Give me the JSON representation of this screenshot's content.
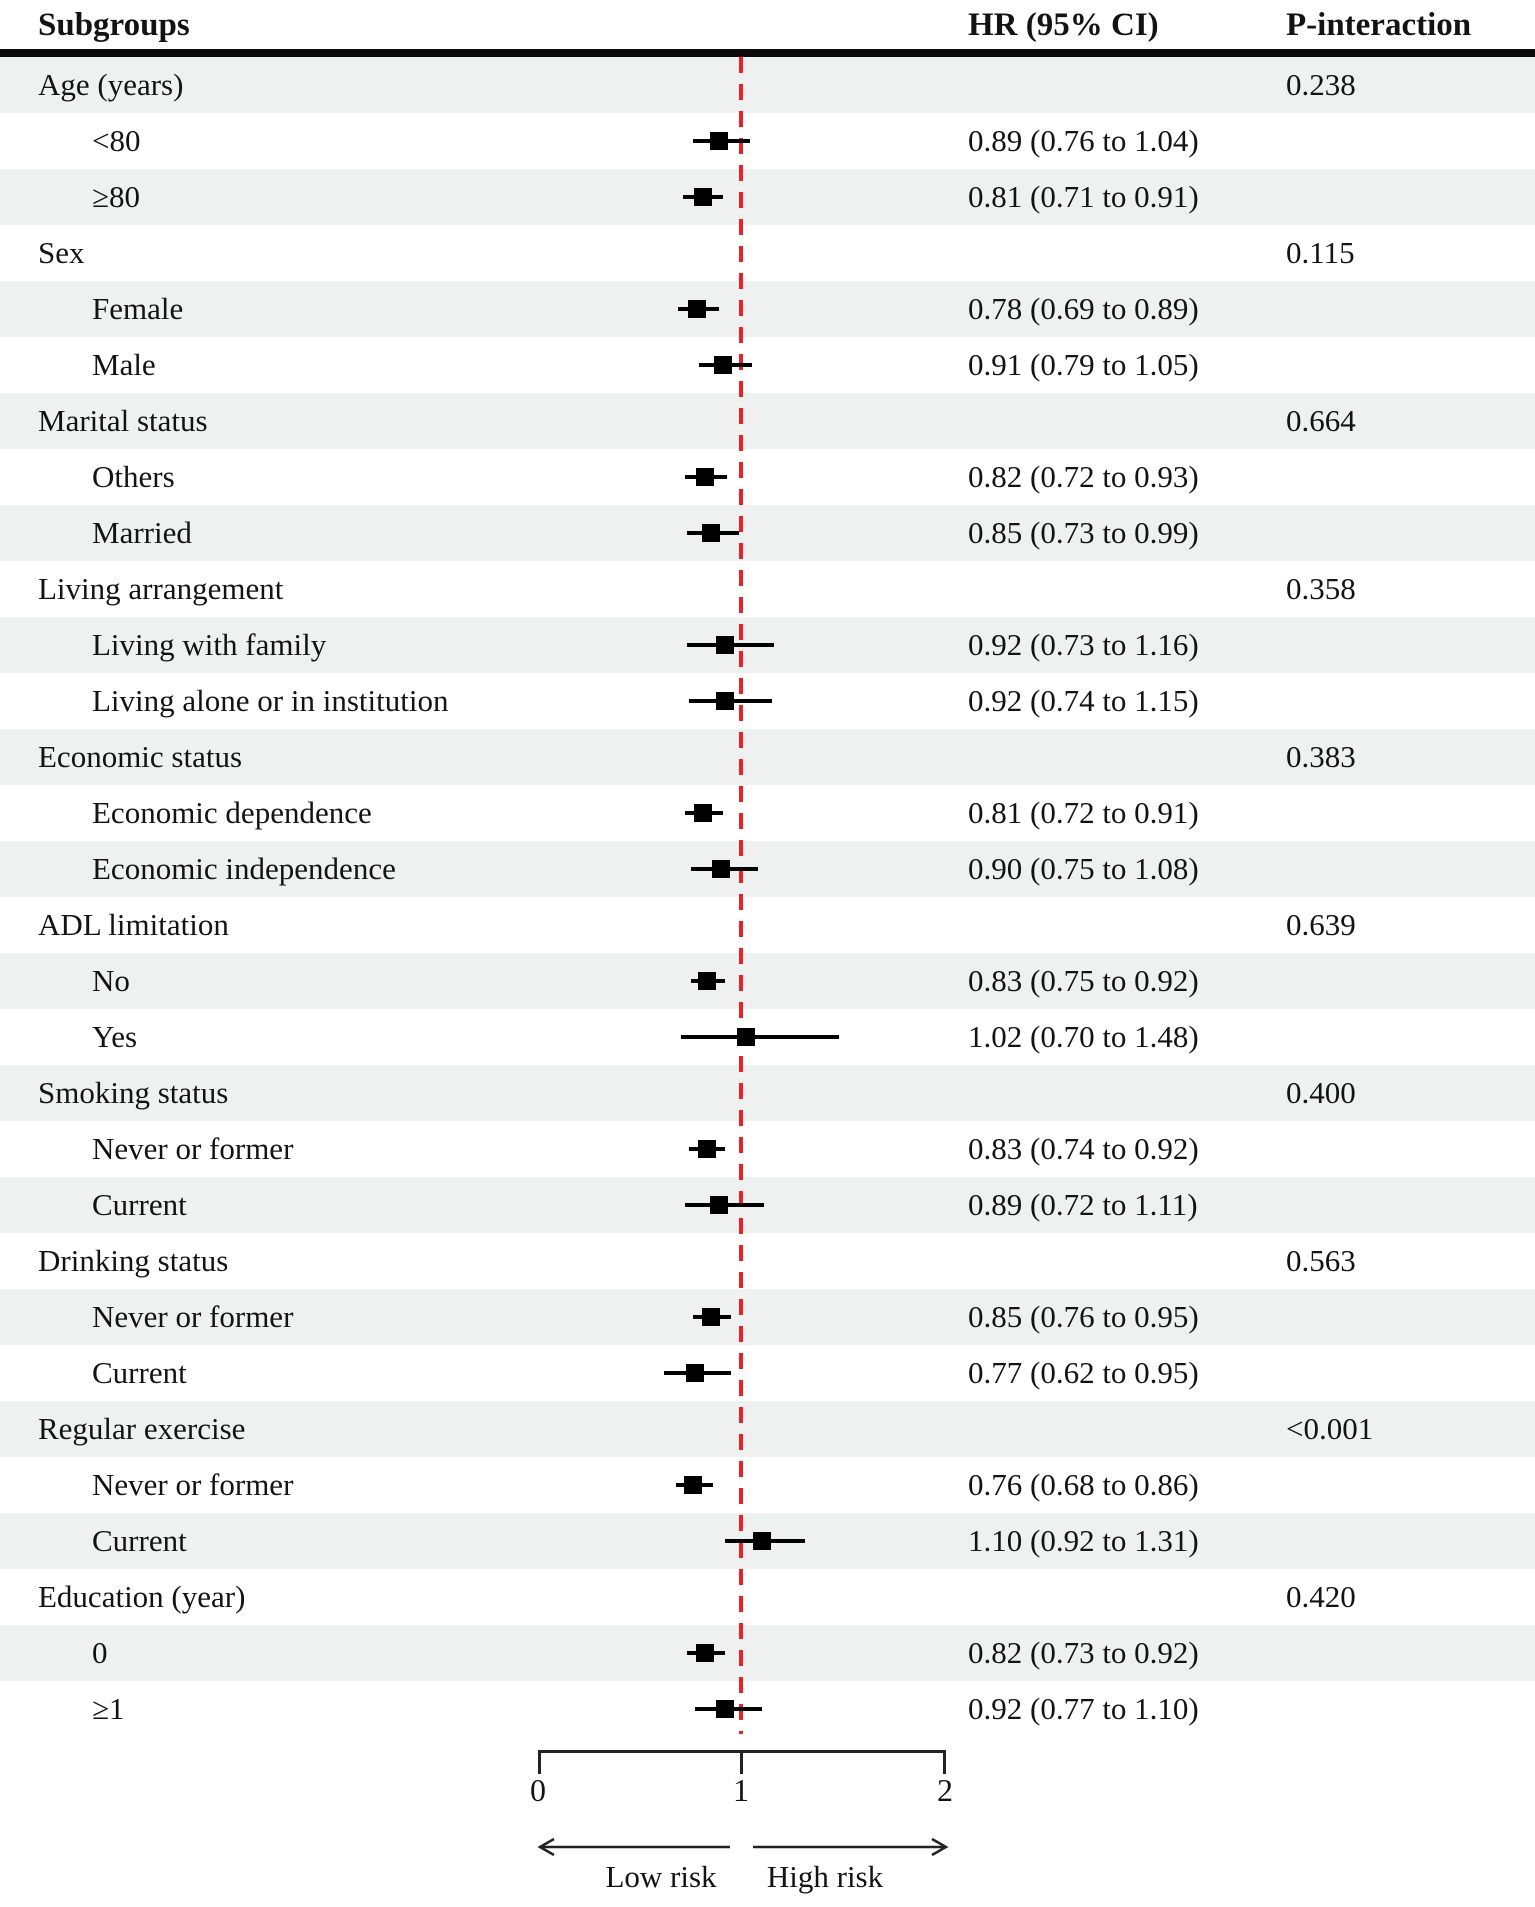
{
  "header": {
    "subgroups": "Subgroups",
    "hr_ci": "HR (95% CI)",
    "p_interaction": "P-interaction"
  },
  "chart_data": {
    "type": "forest",
    "columns": [
      "Subgroups",
      "HR (95% CI)",
      "P-interaction"
    ],
    "x_axis": {
      "min": 0,
      "max": 2,
      "ticks": [
        0,
        1,
        2
      ],
      "tick_labels": [
        "0",
        "1",
        "2"
      ],
      "reference_line": 1,
      "scale": "linear"
    },
    "direction_labels": {
      "low": "Low risk",
      "high": "High risk"
    },
    "reference_line_color": "#ed2024",
    "shade_color": "#eef1ef",
    "rows": [
      {
        "label": "Age (years)",
        "level": "group",
        "p": "0.238"
      },
      {
        "label": "<80",
        "level": "sub",
        "hr": 0.89,
        "lo": 0.76,
        "hi": 1.04,
        "ci_text": "0.89 (0.76 to 1.04)"
      },
      {
        "label": "≥80",
        "level": "sub",
        "hr": 0.81,
        "lo": 0.71,
        "hi": 0.91,
        "ci_text": "0.81 (0.71 to 0.91)"
      },
      {
        "label": "Sex",
        "level": "group",
        "p": "0.115"
      },
      {
        "label": "Female",
        "level": "sub",
        "hr": 0.78,
        "lo": 0.69,
        "hi": 0.89,
        "ci_text": "0.78 (0.69 to 0.89)"
      },
      {
        "label": "Male",
        "level": "sub",
        "hr": 0.91,
        "lo": 0.79,
        "hi": 1.05,
        "ci_text": "0.91 (0.79 to 1.05)"
      },
      {
        "label": "Marital status",
        "level": "group",
        "p": "0.664"
      },
      {
        "label": "Others",
        "level": "sub",
        "hr": 0.82,
        "lo": 0.72,
        "hi": 0.93,
        "ci_text": "0.82 (0.72 to 0.93)"
      },
      {
        "label": "Married",
        "level": "sub",
        "hr": 0.85,
        "lo": 0.73,
        "hi": 0.99,
        "ci_text": "0.85 (0.73 to 0.99)"
      },
      {
        "label": "Living arrangement",
        "level": "group",
        "p": "0.358"
      },
      {
        "label": "Living with family",
        "level": "sub",
        "hr": 0.92,
        "lo": 0.73,
        "hi": 1.16,
        "ci_text": "0.92 (0.73 to 1.16)"
      },
      {
        "label": "Living alone or in institution",
        "level": "sub",
        "hr": 0.92,
        "lo": 0.74,
        "hi": 1.15,
        "ci_text": "0.92 (0.74 to 1.15)"
      },
      {
        "label": "Economic status",
        "level": "group",
        "p": "0.383"
      },
      {
        "label": "Economic dependence",
        "level": "sub",
        "hr": 0.81,
        "lo": 0.72,
        "hi": 0.91,
        "ci_text": "0.81 (0.72 to 0.91)"
      },
      {
        "label": "Economic independence",
        "level": "sub",
        "hr": 0.9,
        "lo": 0.75,
        "hi": 1.08,
        "ci_text": "0.90 (0.75 to 1.08)"
      },
      {
        "label": "ADL limitation",
        "level": "group",
        "p": "0.639"
      },
      {
        "label": "No",
        "level": "sub",
        "hr": 0.83,
        "lo": 0.75,
        "hi": 0.92,
        "ci_text": "0.83 (0.75 to 0.92)"
      },
      {
        "label": "Yes",
        "level": "sub",
        "hr": 1.02,
        "lo": 0.7,
        "hi": 1.48,
        "ci_text": "1.02 (0.70 to 1.48)"
      },
      {
        "label": "Smoking status",
        "level": "group",
        "p": "0.400"
      },
      {
        "label": "Never or former",
        "level": "sub",
        "hr": 0.83,
        "lo": 0.74,
        "hi": 0.92,
        "ci_text": "0.83 (0.74 to 0.92)"
      },
      {
        "label": "Current",
        "level": "sub",
        "hr": 0.89,
        "lo": 0.72,
        "hi": 1.11,
        "ci_text": "0.89 (0.72 to 1.11)"
      },
      {
        "label": "Drinking status",
        "level": "group",
        "p": "0.563"
      },
      {
        "label": "Never or former",
        "level": "sub",
        "hr": 0.85,
        "lo": 0.76,
        "hi": 0.95,
        "ci_text": "0.85 (0.76 to 0.95)"
      },
      {
        "label": "Current",
        "level": "sub",
        "hr": 0.77,
        "lo": 0.62,
        "hi": 0.95,
        "ci_text": "0.77 (0.62 to 0.95)"
      },
      {
        "label": "Regular exercise",
        "level": "group",
        "p": "<0.001"
      },
      {
        "label": "Never or former",
        "level": "sub",
        "hr": 0.76,
        "lo": 0.68,
        "hi": 0.86,
        "ci_text": "0.76 (0.68 to 0.86)"
      },
      {
        "label": "Current",
        "level": "sub",
        "hr": 1.1,
        "lo": 0.92,
        "hi": 1.31,
        "ci_text": "1.10 (0.92 to 1.31)"
      },
      {
        "label": "Education (year)",
        "level": "group",
        "p": "0.420"
      },
      {
        "label": "0",
        "level": "sub",
        "hr": 0.82,
        "lo": 0.73,
        "hi": 0.92,
        "ci_text": "0.82 (0.73 to 0.92)"
      },
      {
        "label": "≥1",
        "level": "sub",
        "hr": 0.92,
        "lo": 0.77,
        "hi": 1.1,
        "ci_text": "0.92 (0.77 to 1.10)"
      }
    ]
  }
}
